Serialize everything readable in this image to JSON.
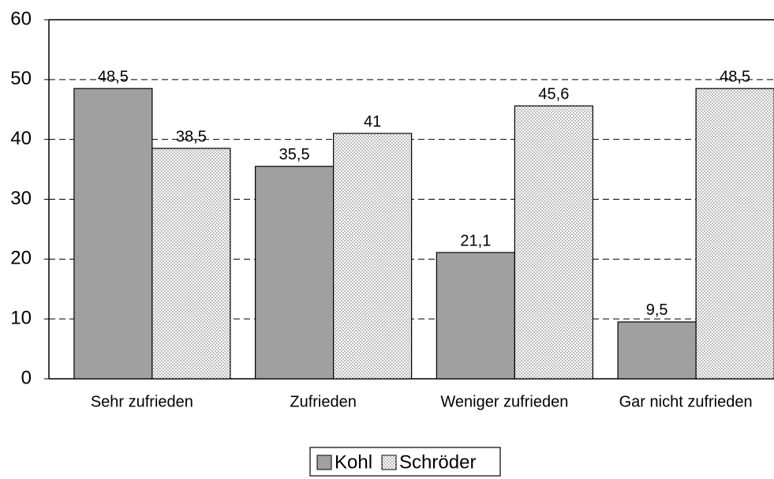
{
  "chart_data": {
    "type": "bar",
    "categories": [
      "Sehr zufrieden",
      "Zufrieden",
      "Weniger zufrieden",
      "Gar nicht zufrieden"
    ],
    "series": [
      {
        "name": "Kohl",
        "color": "#a0a0a0",
        "values": [
          48.5,
          35.5,
          21.1,
          9.5
        ],
        "value_labels": [
          "48,5",
          "35,5",
          "21,1",
          "9,5"
        ]
      },
      {
        "name": "Schröder",
        "color": "#ffffff",
        "pattern": "dots",
        "values": [
          38.5,
          41,
          45.6,
          48.5
        ],
        "value_labels": [
          "38,5",
          "41",
          "45,6",
          "48,5"
        ]
      }
    ],
    "ylim": [
      0,
      60
    ],
    "yticks": [
      0,
      10,
      20,
      30,
      40,
      50,
      60
    ],
    "grid": true,
    "legend": "bottom"
  }
}
